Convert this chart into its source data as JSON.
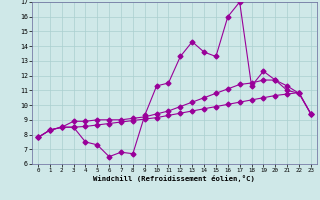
{
  "xlabel": "Windchill (Refroidissement éolien,°C)",
  "xlim": [
    -0.5,
    23.5
  ],
  "ylim": [
    6,
    17
  ],
  "xticks": [
    0,
    1,
    2,
    3,
    4,
    5,
    6,
    7,
    8,
    9,
    10,
    11,
    12,
    13,
    14,
    15,
    16,
    17,
    18,
    19,
    20,
    21,
    22,
    23
  ],
  "yticks": [
    6,
    7,
    8,
    9,
    10,
    11,
    12,
    13,
    14,
    15,
    16,
    17
  ],
  "bg_color": "#cfe8e8",
  "grid_color": "#aacfcf",
  "line_color": "#990099",
  "line1_y": [
    7.8,
    8.3,
    8.5,
    8.5,
    8.55,
    8.65,
    8.75,
    8.85,
    8.95,
    9.05,
    9.15,
    9.3,
    9.45,
    9.6,
    9.75,
    9.9,
    10.05,
    10.2,
    10.35,
    10.5,
    10.65,
    10.75,
    10.85,
    9.4
  ],
  "line2_y": [
    7.8,
    8.3,
    8.5,
    8.5,
    7.5,
    7.3,
    6.5,
    6.8,
    6.7,
    9.3,
    11.3,
    11.5,
    13.3,
    14.3,
    13.6,
    13.3,
    16.0,
    17.0,
    11.3,
    12.3,
    11.7,
    11.0,
    10.8,
    9.4
  ],
  "line3_y": [
    7.8,
    8.3,
    8.5,
    8.9,
    8.9,
    9.0,
    9.0,
    9.0,
    9.1,
    9.2,
    9.4,
    9.6,
    9.9,
    10.2,
    10.5,
    10.8,
    11.1,
    11.4,
    11.5,
    11.7,
    11.7,
    11.3,
    10.8,
    9.4
  ],
  "marker": "D",
  "markersize": 2.5,
  "linewidth": 0.8
}
